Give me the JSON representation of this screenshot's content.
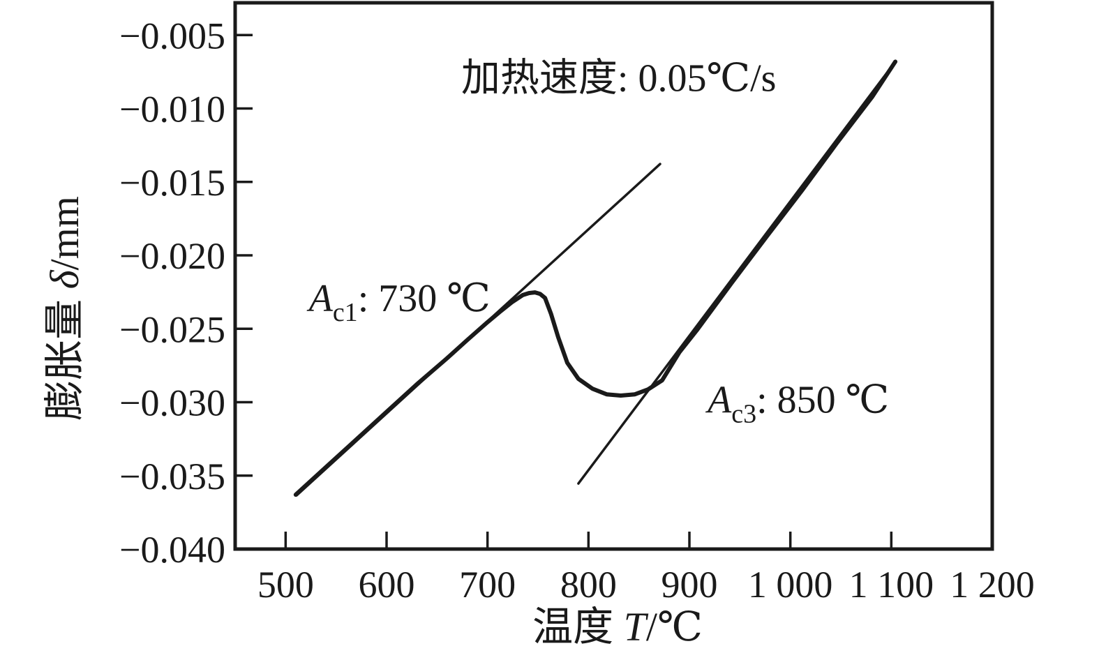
{
  "page": {
    "background": "#ffffff",
    "ink": "#1a1a1a"
  },
  "chart_data": {
    "type": "line",
    "title": "",
    "xlabel": {
      "text": "温度 T/℃",
      "prefix": "温度 ",
      "symbol": "T",
      "unit": "/℃"
    },
    "ylabel": {
      "text": "膨胀量 δ/mm",
      "prefix": "膨胀量 ",
      "symbol": "δ",
      "unit": "/mm"
    },
    "xlim": [
      450,
      1200
    ],
    "ylim": [
      -0.04,
      -0.0028
    ],
    "grid": false,
    "legend": null,
    "x_ticks": [
      {
        "value": 500,
        "label": "500"
      },
      {
        "value": 600,
        "label": "600"
      },
      {
        "value": 700,
        "label": "700"
      },
      {
        "value": 800,
        "label": "800"
      },
      {
        "value": 900,
        "label": "900"
      },
      {
        "value": 1000,
        "label": "1 000"
      },
      {
        "value": 1100,
        "label": "1 100"
      },
      {
        "value": 1200,
        "label": "1 200"
      }
    ],
    "y_ticks": [
      {
        "value": -0.005,
        "label": "−0.005"
      },
      {
        "value": -0.01,
        "label": "−0.010"
      },
      {
        "value": -0.015,
        "label": "−0.015"
      },
      {
        "value": -0.02,
        "label": "−0.020"
      },
      {
        "value": -0.025,
        "label": "−0.025"
      },
      {
        "value": -0.03,
        "label": "−0.030"
      },
      {
        "value": -0.035,
        "label": "−0.035"
      },
      {
        "value": -0.04,
        "label": "−0.040"
      }
    ],
    "annotations": [
      {
        "name": "heating-rate-label",
        "text": "加热速度: 0.05℃/s",
        "x": 830,
        "y": -0.0088,
        "anchor": "middle"
      },
      {
        "name": "ac1-label",
        "symbol": "A",
        "subscript": "c1",
        "suffix": ": 730 ℃",
        "x": 523,
        "y": -0.0238,
        "anchor": "start"
      },
      {
        "name": "ac3-label",
        "symbol": "A",
        "subscript": "c3",
        "suffix": ": 850 ℃",
        "x": 918,
        "y": -0.0307,
        "anchor": "start"
      }
    ],
    "key_points": {
      "Ac1_temperature_C": 730,
      "Ac3_temperature_C": 850,
      "heating_rate_C_per_s": 0.05,
      "curve_peak": [
        747,
        -0.0225
      ],
      "curve_dip": [
        832,
        -0.0296
      ]
    },
    "series": [
      {
        "name": "dilatometry-curve",
        "points": [
          [
            510,
            -0.0363
          ],
          [
            540,
            -0.03442
          ],
          [
            570,
            -0.03254
          ],
          [
            600,
            -0.03066
          ],
          [
            630,
            -0.02878
          ],
          [
            660,
            -0.027
          ],
          [
            680,
            -0.02576
          ],
          [
            700,
            -0.02455
          ],
          [
            712,
            -0.02386
          ],
          [
            724,
            -0.0232
          ],
          [
            735,
            -0.0227
          ],
          [
            741,
            -0.02257
          ],
          [
            747,
            -0.02252
          ],
          [
            752,
            -0.02262
          ],
          [
            757,
            -0.0229
          ],
          [
            763,
            -0.024
          ],
          [
            770,
            -0.02556
          ],
          [
            779,
            -0.02732
          ],
          [
            790,
            -0.02841
          ],
          [
            804,
            -0.02908
          ],
          [
            818,
            -0.02946
          ],
          [
            832,
            -0.02955
          ],
          [
            846,
            -0.02946
          ],
          [
            859,
            -0.02913
          ],
          [
            873,
            -0.02851
          ],
          [
            890,
            -0.02661
          ],
          [
            908,
            -0.02504
          ],
          [
            942,
            -0.02186
          ],
          [
            977,
            -0.01868
          ],
          [
            1012,
            -0.01554
          ],
          [
            1046,
            -0.01236
          ],
          [
            1081,
            -0.00922
          ],
          [
            1104,
            -0.00681
          ]
        ]
      },
      {
        "name": "ac1-tangent-line",
        "points": [
          [
            511,
            -0.03634
          ],
          [
            871,
            -0.01378
          ]
        ]
      },
      {
        "name": "ac3-tangent-line",
        "points": [
          [
            790,
            -0.03554
          ],
          [
            1104,
            -0.00681
          ]
        ]
      }
    ]
  }
}
